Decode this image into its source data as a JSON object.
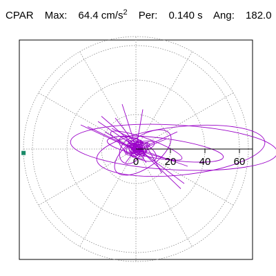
{
  "header": {
    "component": "CPAR",
    "max_label": "Max:",
    "max_value": "64.4 cm/s",
    "max_unit_exp": "2",
    "per_label": "Per:",
    "per_value": "0.140 s",
    "ang_label": "Ang:",
    "ang_value": "182.0"
  },
  "chart_data": {
    "type": "polar-orbit",
    "title": "CPAR",
    "rlim": [
      0,
      65
    ],
    "radial_ticks": [
      20,
      40,
      60
    ],
    "rings": [
      20,
      40,
      60
    ],
    "spokes_deg": [
      0,
      30,
      60,
      90,
      120,
      150,
      180,
      210,
      240,
      270,
      300,
      330
    ],
    "grid": true,
    "max_marker": {
      "radius": 64.4,
      "angle_deg": 182.0
    },
    "colors": {
      "trace": "#9a00c8",
      "marker": "#1a8a68",
      "grid": "#888888",
      "axis": "#000000"
    },
    "orbits": [
      {
        "cx": 22,
        "cy": 1,
        "rx": 60,
        "ry": 13,
        "rot": -3
      },
      {
        "cx": 26,
        "cy": -1,
        "rx": 49,
        "ry": 14,
        "rot": 6
      },
      {
        "cx": 17,
        "cy": 0,
        "rx": 34,
        "ry": 6,
        "rot": -8
      },
      {
        "cx": 4,
        "cy": -2,
        "rx": 19,
        "ry": 9,
        "rot": 35
      },
      {
        "cx": 1,
        "cy": 0,
        "rx": 12,
        "ry": 5,
        "rot": -28
      },
      {
        "cx": 2,
        "cy": 1,
        "rx": 9,
        "ry": 3,
        "rot": 15
      },
      {
        "cx": 6,
        "cy": 2,
        "rx": 22,
        "ry": 4,
        "rot": -20
      },
      {
        "cx": -3,
        "cy": -1,
        "rx": 8,
        "ry": 6,
        "rot": 60
      }
    ],
    "strokes": [
      [
        [
          -32,
          14
        ],
        [
          -2,
          0
        ],
        [
          3,
          -2
        ]
      ],
      [
        [
          -22,
          16
        ],
        [
          0,
          1
        ],
        [
          28,
          -20
        ]
      ],
      [
        [
          -20,
          19
        ],
        [
          2,
          0
        ],
        [
          26,
          -23
        ]
      ],
      [
        [
          -28,
          13
        ],
        [
          1,
          -1
        ],
        [
          18,
          6
        ]
      ],
      [
        [
          -8,
          26
        ],
        [
          0,
          1
        ],
        [
          6,
          -8
        ]
      ],
      [
        [
          -12,
          18
        ],
        [
          2,
          0
        ],
        [
          30,
          -10
        ]
      ],
      [
        [
          4,
          23
        ],
        [
          0,
          0
        ],
        [
          -6,
          -8
        ]
      ],
      [
        [
          -18,
          10
        ],
        [
          0,
          -1
        ],
        [
          24,
          10
        ]
      ],
      [
        [
          -14,
          12
        ],
        [
          6,
          2
        ],
        [
          15,
          -14
        ]
      ],
      [
        [
          -6,
          6
        ],
        [
          5,
          -4
        ],
        [
          8,
          3
        ],
        [
          -4,
          5
        ],
        [
          -6,
          -3
        ],
        [
          4,
          -6
        ],
        [
          7,
          4
        ],
        [
          -3,
          2
        ]
      ],
      [
        [
          -4,
          3
        ],
        [
          4,
          4
        ],
        [
          6,
          -2
        ],
        [
          -2,
          -4
        ],
        [
          -5,
          2
        ],
        [
          3,
          3
        ],
        [
          5,
          -3
        ]
      ]
    ]
  }
}
